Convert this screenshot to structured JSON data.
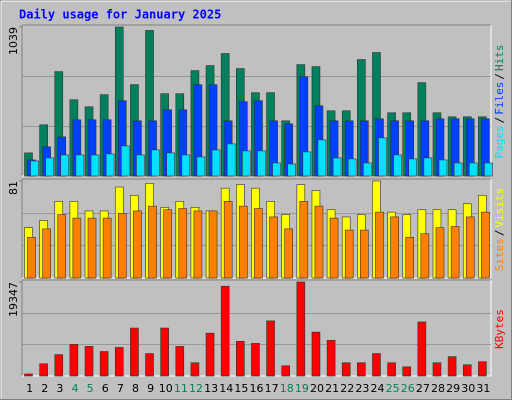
{
  "legend_separator": "/",
  "chart_data": [
    {
      "type": "bar",
      "title": "Daily usage for January 2025",
      "ylim": [
        0,
        1039
      ],
      "yticks": [
        1039
      ],
      "series": [
        {
          "name": "Hits",
          "color": "#00805c",
          "values": [
            161,
            357,
            728,
            532,
            483,
            567,
            1039,
            637,
            1015,
            574,
            574,
            735,
            770,
            854,
            749,
            581,
            581,
            385,
            777,
            763,
            455,
            455,
            812,
            861,
            441,
            441,
            651,
            441,
            413,
            413,
            413
          ]
        },
        {
          "name": "Files",
          "color": "#0040ff",
          "values": [
            112,
            203,
            273,
            392,
            392,
            392,
            525,
            385,
            385,
            462,
            462,
            637,
            637,
            385,
            518,
            525,
            385,
            364,
            693,
            490,
            385,
            385,
            385,
            399,
            385,
            385,
            385,
            399,
            399,
            399,
            399
          ]
        },
        {
          "name": "Pages",
          "color": "#00e0ff",
          "values": [
            105,
            126,
            147,
            147,
            147,
            154,
            210,
            147,
            182,
            161,
            147,
            133,
            182,
            224,
            175,
            175,
            91,
            84,
            168,
            252,
            126,
            119,
            91,
            266,
            147,
            119,
            126,
            112,
            91,
            91,
            91
          ]
        }
      ]
    },
    {
      "type": "bar",
      "ylim": [
        0,
        81
      ],
      "yticks": [
        81
      ],
      "series": [
        {
          "name": "Visits",
          "color": "#ffff00",
          "values": [
            42,
            48,
            64,
            64,
            56,
            56,
            76,
            69,
            79,
            59,
            64,
            59,
            56,
            75,
            78,
            75,
            64,
            53,
            78,
            73,
            57,
            51,
            53,
            81,
            55,
            53,
            57,
            57,
            57,
            62,
            69
          ]
        },
        {
          "name": "Sites",
          "color": "#ff8000",
          "values": [
            34,
            41,
            53,
            50,
            50,
            50,
            54,
            56,
            60,
            57,
            58,
            56,
            56,
            64,
            60,
            58,
            51,
            41,
            64,
            60,
            50,
            40,
            40,
            55,
            51,
            34,
            37,
            42,
            43,
            51,
            55
          ]
        }
      ]
    },
    {
      "type": "bar",
      "ylim": [
        0,
        19347
      ],
      "yticks": [
        19347
      ],
      "categories": [
        "1",
        "2",
        "3",
        "4",
        "5",
        "6",
        "7",
        "8",
        "9",
        "10",
        "11",
        "12",
        "13",
        "14",
        "15",
        "16",
        "17",
        "18",
        "19",
        "20",
        "21",
        "22",
        "23",
        "24",
        "25",
        "26",
        "27",
        "28",
        "29",
        "30",
        "31"
      ],
      "category_colors": [
        "#000000",
        "#000000",
        "#000000",
        "#00805c",
        "#00805c",
        "#000000",
        "#000000",
        "#000000",
        "#000000",
        "#000000",
        "#00805c",
        "#00805c",
        "#000000",
        "#000000",
        "#000000",
        "#000000",
        "#000000",
        "#00805c",
        "#00805c",
        "#000000",
        "#000000",
        "#000000",
        "#000000",
        "#000000",
        "#00805c",
        "#00805c",
        "#000000",
        "#000000",
        "#000000",
        "#000000",
        "#000000"
      ],
      "series": [
        {
          "name": "KBytes",
          "color": "#ff0000",
          "values": [
            420,
            2520,
            4410,
            6510,
            6090,
            5040,
            5880,
            9870,
            4620,
            9870,
            6090,
            2730,
            8820,
            18480,
            7140,
            6720,
            11340,
            2100,
            19347,
            9030,
            7350,
            2730,
            2730,
            4620,
            2730,
            1890,
            11130,
            2730,
            3990,
            2310,
            2940
          ]
        }
      ]
    }
  ]
}
